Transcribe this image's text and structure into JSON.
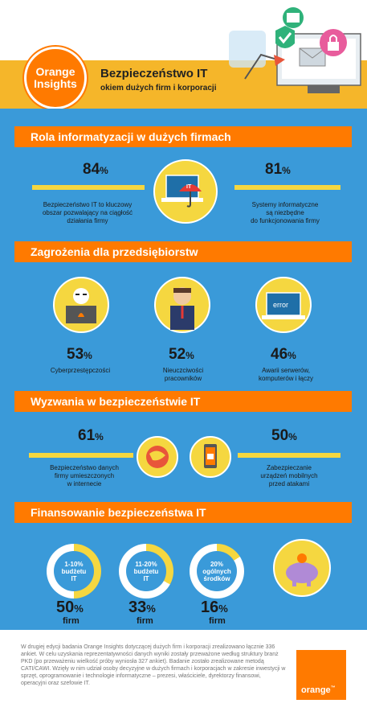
{
  "header": {
    "logo_line1": "Orange",
    "logo_line2": "Insights",
    "title": "Bezpieczeństwo IT",
    "subtitle": "okiem dużych firm i korporacji"
  },
  "sections": {
    "s1": {
      "title": "Rola informatyzacji w dużych firmach",
      "left_pct": "84",
      "left_desc": [
        "Bezpieczeństwo IT to kluczowy",
        "obszar pozwalający na ciągłość",
        "działania firmy"
      ],
      "right_pct": "81",
      "right_desc": [
        "Systemy informatyczne",
        "są niezbędne",
        "do funkcjonowania firmy"
      ],
      "icon_label": "IT"
    },
    "s2": {
      "title": "Zagrożenia dla przedsiębiorstw",
      "items": [
        {
          "pct": "53",
          "desc": [
            "Cyberprzestępczości"
          ]
        },
        {
          "pct": "52",
          "desc": [
            "Nieuczciwości",
            "pracowników"
          ]
        },
        {
          "pct": "46",
          "desc": [
            "Awarii serwerów,",
            "komputerów i łączy"
          ]
        }
      ],
      "error_label": "error"
    },
    "s3": {
      "title": "Wyzwania w bezpieczeństwie IT",
      "left_pct": "61",
      "left_desc": [
        "Bezpieczeństwo danych",
        "firmy umieszczonych",
        "w internecie"
      ],
      "right_pct": "50",
      "right_desc": [
        "Zabezpieczanie",
        "urządzeń mobilnych",
        "przed atakami"
      ]
    },
    "s4": {
      "title": "Finansowanie bezpieczeństwa IT",
      "items": [
        {
          "label": [
            "1-10%",
            "budżetu",
            "IT"
          ],
          "pct": "50",
          "firm": "firm",
          "fill": 0.5
        },
        {
          "label": [
            "11-20%",
            "budżetu",
            "IT"
          ],
          "pct": "33",
          "firm": "firm",
          "fill": 0.33
        },
        {
          "label": [
            "20%",
            "ogólnych",
            "środków"
          ],
          "pct": "16",
          "firm": "firm",
          "fill": 0.16
        }
      ]
    }
  },
  "percent_sign": "%",
  "footer": {
    "text": "W drugiej edycji badania Orange Insights dotyczącej dużych firm i korporacji zrealizowano łącznie 336 ankiet. W celu uzyskania reprezentatywności danych wyniki zostały przeważone według struktury branż PKD (po przeważeniu wielkość próby wyniosła 327 ankiet). Badanie zostało zrealizowane metodą CATI/CAWI. Wzięły w nim udział osoby decyzyjne w dużych firmach i korporacjach w zakresie inwestycji w sprzęt, oprogramowanie i technologie informatyczne – prezesi, właściciele, dyrektorzy finansowi, operacyjni oraz szefowie IT.",
    "brand": "orange",
    "tm": "™"
  },
  "colors": {
    "orange": "#ff7a00",
    "blue": "#3a9ad9",
    "yellow": "#f5d740",
    "gold": "#f5b62a"
  }
}
